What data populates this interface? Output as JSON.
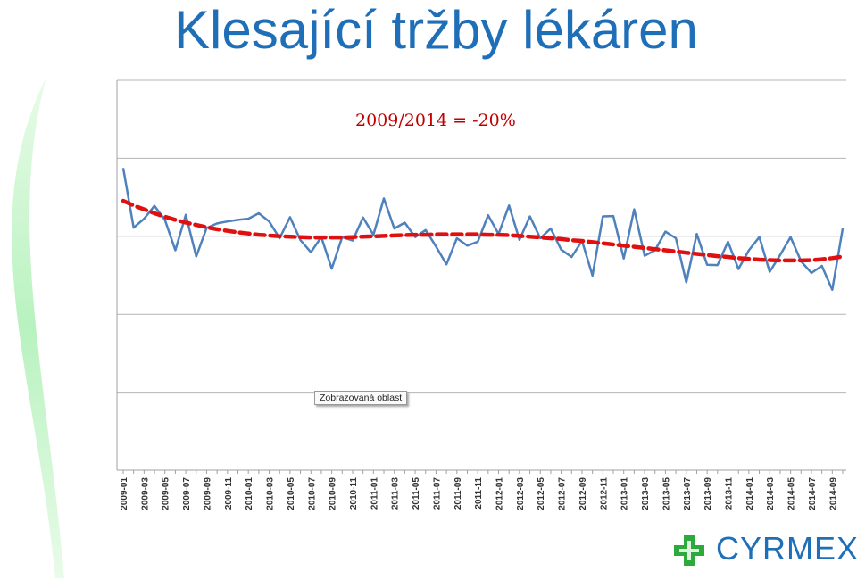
{
  "slide": {
    "title": "Klesající tržby lékáren"
  },
  "chart_data": {
    "type": "line",
    "title": "",
    "xlabel": "",
    "ylabel": "",
    "annotation": "2009/2014 = -20%",
    "tooltip": "Zobrazovaná oblast",
    "y_axis_labels_visible": false,
    "ylim": [
      0,
      100
    ],
    "grid": "horizontal",
    "x": [
      "2009-01",
      "2009-02",
      "2009-03",
      "2009-04",
      "2009-05",
      "2009-06",
      "2009-07",
      "2009-08",
      "2009-09",
      "2009-10",
      "2009-11",
      "2009-12",
      "2010-01",
      "2010-02",
      "2010-03",
      "2010-04",
      "2010-05",
      "2010-06",
      "2010-07",
      "2010-08",
      "2010-09",
      "2010-10",
      "2010-11",
      "2010-12",
      "2011-01",
      "2011-02",
      "2011-03",
      "2011-04",
      "2011-05",
      "2011-06",
      "2011-07",
      "2011-08",
      "2011-09",
      "2011-10",
      "2011-11",
      "2011-12",
      "2012-01",
      "2012-02",
      "2012-03",
      "2012-04",
      "2012-05",
      "2012-06",
      "2012-07",
      "2012-08",
      "2012-09",
      "2012-10",
      "2012-11",
      "2012-12",
      "2013-01",
      "2013-02",
      "2013-03",
      "2013-04",
      "2013-05",
      "2013-06",
      "2013-07",
      "2013-08",
      "2013-09",
      "2013-10",
      "2013-11",
      "2013-12",
      "2014-01",
      "2014-02",
      "2014-03",
      "2014-04",
      "2014-05",
      "2014-06",
      "2014-07",
      "2014-08",
      "2014-09",
      "2014-10"
    ],
    "tick_labels": [
      "2009-01",
      "2009-03",
      "2009-05",
      "2009-07",
      "2009-09",
      "2009-11",
      "2010-01",
      "2010-03",
      "2010-05",
      "2010-07",
      "2010-09",
      "2010-11",
      "2011-01",
      "2011-03",
      "2011-05",
      "2011-07",
      "2011-09",
      "2011-11",
      "2012-01",
      "2012-03",
      "2012-05",
      "2012-07",
      "2012-09",
      "2012-11",
      "2013-01",
      "2013-03",
      "2013-05",
      "2013-07",
      "2013-09",
      "2013-11",
      "2014-01",
      "2014-03",
      "2014-05",
      "2014-07",
      "2014-09"
    ],
    "series": [
      {
        "kind": "actual",
        "color": "#4f81bd",
        "values": [
          77.5,
          62.2,
          64.5,
          67.8,
          64.2,
          56.4,
          65.5,
          54.8,
          62.1,
          63.3,
          63.8,
          64.2,
          64.5,
          65.9,
          63.8,
          59.5,
          64.9,
          59.0,
          55.9,
          59.8,
          51.7,
          59.8,
          58.9,
          64.8,
          60.4,
          69.7,
          62.0,
          63.5,
          59.8,
          61.6,
          57.4,
          52.8,
          59.5,
          57.6,
          58.6,
          65.4,
          60.6,
          67.9,
          59.1,
          65.1,
          59.5,
          62.0,
          56.6,
          54.7,
          58.8,
          49.9,
          65.1,
          65.2,
          54.3,
          66.9,
          55.0,
          56.4,
          61.2,
          59.5,
          48.2,
          60.6,
          52.7,
          52.6,
          58.6,
          51.6,
          56.4,
          59.8,
          50.9,
          55.2,
          59.8,
          53.6,
          50.6,
          52.4,
          46.3,
          62.0
        ],
        "ylim_note": ""
      },
      {
        "kind": "trend",
        "color": "#e01010",
        "values": [
          69.1,
          67.9,
          66.9,
          65.9,
          65.0,
          64.2,
          63.5,
          62.9,
          62.3,
          61.8,
          61.4,
          61.0,
          60.7,
          60.4,
          60.2,
          60.0,
          59.9,
          59.8,
          59.7,
          59.7,
          59.7,
          59.7,
          59.8,
          59.9,
          60.0,
          60.1,
          60.2,
          60.3,
          60.4,
          60.4,
          60.5,
          60.5,
          60.5,
          60.5,
          60.5,
          60.4,
          60.4,
          60.3,
          60.1,
          59.9,
          59.7,
          59.5,
          59.3,
          59.0,
          58.8,
          58.5,
          58.2,
          57.9,
          57.6,
          57.3,
          57.0,
          56.7,
          56.4,
          56.1,
          55.8,
          55.5,
          55.2,
          54.9,
          54.7,
          54.4,
          54.2,
          54.0,
          53.9,
          53.8,
          53.8,
          53.8,
          53.9,
          54.1,
          54.4,
          54.8
        ]
      }
    ]
  },
  "logo": {
    "text": "CYRMEX",
    "cross_color": "#2eaa3c",
    "text_color": "#1f6fb8"
  }
}
